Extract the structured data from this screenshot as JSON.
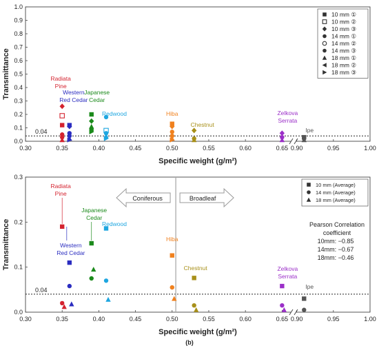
{
  "chart_data": [
    {
      "type": "scatter",
      "panel": "a",
      "xlabel": "Specific weight (g/m²)",
      "ylabel": "Transmittance",
      "xlim": [
        0.3,
        1.0
      ],
      "axis_break": [
        0.66,
        0.89
      ],
      "ylim": [
        0,
        1.0
      ],
      "xticks": [
        "0.30",
        "0.35",
        "0.40",
        "0.45",
        "0.50",
        "0.55",
        "0.60",
        "0.65",
        "0.90",
        "0.95",
        "1.00"
      ],
      "yticks": [
        "0.0",
        "0.1",
        "0.2",
        "0.3",
        "0.4",
        "0.5",
        "0.6",
        "0.7",
        "0.8",
        "0.9",
        "1.0"
      ],
      "reference_line": {
        "y": 0.04,
        "label": "0.04",
        "style": "dotted"
      },
      "legend_position": "top-right",
      "legend": [
        {
          "label": "10 mm ①",
          "marker": "square",
          "filled": true
        },
        {
          "label": "10 mm ②",
          "marker": "square",
          "filled": false
        },
        {
          "label": "10 mm ③",
          "marker": "diamond",
          "filled": true
        },
        {
          "label": "14 mm ①",
          "marker": "circle",
          "filled": true
        },
        {
          "label": "14 mm ②",
          "marker": "circle",
          "filled": false
        },
        {
          "label": "14 mm ③",
          "marker": "circle",
          "filled": true
        },
        {
          "label": "18 mm ①",
          "marker": "triangle-up",
          "filled": true
        },
        {
          "label": "18 mm ②",
          "marker": "triangle-left",
          "filled": true
        },
        {
          "label": "18 mm ③",
          "marker": "triangle-right",
          "filled": true
        }
      ],
      "species": [
        {
          "lines": [
            "Radiata",
            "Pine"
          ],
          "x": 0.35,
          "color": "#d4232f",
          "points": [
            {
              "series": 2,
              "y": 0.26
            },
            {
              "series": 1,
              "y": 0.19
            },
            {
              "series": 0,
              "y": 0.12
            },
            {
              "series": 3,
              "y": 0.05
            },
            {
              "series": 5,
              "y": 0.03
            },
            {
              "series": 6,
              "y": 0.01
            }
          ]
        },
        {
          "lines": [
            "Western",
            "Red Cedar"
          ],
          "x": 0.36,
          "color": "#2b2dc0",
          "points": [
            {
              "series": 0,
              "y": 0.12
            },
            {
              "series": 2,
              "y": 0.11
            },
            {
              "series": 3,
              "y": 0.06
            },
            {
              "series": 5,
              "y": 0.04
            },
            {
              "series": 6,
              "y": 0.02
            },
            {
              "series": 8,
              "y": 0.01
            }
          ]
        },
        {
          "lines": [
            "Japanese",
            "Cedar"
          ],
          "x": 0.39,
          "color": "#1b8a1b",
          "points": [
            {
              "series": 0,
              "y": 0.2
            },
            {
              "series": 2,
              "y": 0.15
            },
            {
              "series": 6,
              "y": 0.11
            },
            {
              "series": 3,
              "y": 0.09
            },
            {
              "series": 5,
              "y": 0.08
            },
            {
              "series": 8,
              "y": 0.07
            }
          ]
        },
        {
          "lines": [
            "Redwood"
          ],
          "x": 0.41,
          "color": "#1ea6e0",
          "points": [
            {
              "series": 3,
              "y": 0.18
            },
            {
              "series": 1,
              "y": 0.08
            },
            {
              "series": 5,
              "y": 0.06
            },
            {
              "series": 6,
              "y": 0.04
            },
            {
              "series": 8,
              "y": 0.02
            }
          ]
        },
        {
          "lines": [
            "Hiba"
          ],
          "x": 0.5,
          "color": "#f0811e",
          "points": [
            {
              "series": 0,
              "y": 0.13
            },
            {
              "series": 2,
              "y": 0.11
            },
            {
              "series": 3,
              "y": 0.07
            },
            {
              "series": 5,
              "y": 0.04
            },
            {
              "series": 6,
              "y": 0.02
            },
            {
              "series": 8,
              "y": 0.01
            }
          ]
        },
        {
          "lines": [
            "Chestnut"
          ],
          "x": 0.53,
          "color": "#a8901a",
          "points": [
            {
              "series": 2,
              "y": 0.08
            },
            {
              "series": 3,
              "y": 0.02
            },
            {
              "series": 6,
              "y": 0.01
            }
          ]
        },
        {
          "lines": [
            "Zelkova",
            "Serrata"
          ],
          "x": 0.65,
          "color": "#9b2fc8",
          "points": [
            {
              "series": 2,
              "y": 0.06
            },
            {
              "series": 3,
              "y": 0.03
            },
            {
              "series": 6,
              "y": 0.01
            }
          ]
        },
        {
          "lines": [
            "Ipe"
          ],
          "x": 0.91,
          "color": "#555555",
          "points": [
            {
              "series": 0,
              "y": 0.03
            },
            {
              "series": 3,
              "y": 0.02
            },
            {
              "series": 6,
              "y": 0.01
            }
          ]
        }
      ]
    },
    {
      "type": "scatter",
      "panel": "b",
      "caption": "(b)",
      "xlabel": "Specific weight (g/m²)",
      "ylabel": "Transmittance",
      "xlim": [
        0.3,
        1.0
      ],
      "axis_break": [
        0.66,
        0.89
      ],
      "ylim": [
        0,
        0.3
      ],
      "xticks": [
        "0.30",
        "0.35",
        "0.40",
        "0.45",
        "0.50",
        "0.55",
        "0.60",
        "0.65",
        "0.90",
        "0.95",
        "1.00"
      ],
      "yticks": [
        "0.0",
        "0.1",
        "0.2",
        "0.3"
      ],
      "reference_line": {
        "y": 0.04,
        "label": "0.04",
        "style": "dotted"
      },
      "divider": {
        "x": 0.505,
        "left_label": "Coniferous",
        "right_label": "Broadleaf"
      },
      "legend_position": "top-right",
      "legend": [
        {
          "label": "10 mm (Average)",
          "marker": "square",
          "filled": true
        },
        {
          "label": "14 mm (Average)",
          "marker": "circle",
          "filled": true
        },
        {
          "label": "18 mm (Average)",
          "marker": "triangle-up",
          "filled": true
        }
      ],
      "annotation": [
        "Pearson Correlation",
        "coefficient",
        "10mm: −0.85",
        "14mm: −0.67",
        "18mm: −0.46"
      ],
      "species": [
        {
          "lines": [
            "Radiata",
            "Pine"
          ],
          "x": 0.35,
          "color": "#d4232f",
          "points": [
            {
              "series": 0,
              "y": 0.19
            },
            {
              "series": 1,
              "y": 0.02
            },
            {
              "series": 2,
              "y": 0.012
            }
          ]
        },
        {
          "lines": [
            "Western",
            "Red Cedar"
          ],
          "x": 0.36,
          "color": "#2b2dc0",
          "points": [
            {
              "series": 0,
              "y": 0.11
            },
            {
              "series": 1,
              "y": 0.058
            },
            {
              "series": 2,
              "y": 0.018
            }
          ]
        },
        {
          "lines": [
            "Japanese",
            "Cedar"
          ],
          "x": 0.39,
          "color": "#1b8a1b",
          "points": [
            {
              "series": 0,
              "y": 0.153
            },
            {
              "series": 1,
              "y": 0.075
            },
            {
              "series": 2,
              "y": 0.095
            }
          ]
        },
        {
          "lines": [
            "Redwood"
          ],
          "x": 0.41,
          "color": "#1ea6e0",
          "points": [
            {
              "series": 0,
              "y": 0.186
            },
            {
              "series": 1,
              "y": 0.07
            },
            {
              "series": 2,
              "y": 0.028
            }
          ]
        },
        {
          "lines": [
            "Hiba"
          ],
          "x": 0.5,
          "color": "#f0811e",
          "points": [
            {
              "series": 0,
              "y": 0.126
            },
            {
              "series": 1,
              "y": 0.055
            },
            {
              "series": 2,
              "y": 0.03
            }
          ]
        },
        {
          "lines": [
            "Chestnut"
          ],
          "x": 0.53,
          "color": "#a8901a",
          "points": [
            {
              "series": 0,
              "y": 0.076
            },
            {
              "series": 1,
              "y": 0.015
            },
            {
              "series": 2,
              "y": 0.005
            }
          ]
        },
        {
          "lines": [
            "Zelkova",
            "Serrata"
          ],
          "x": 0.65,
          "color": "#9b2fc8",
          "points": [
            {
              "series": 0,
              "y": 0.058
            },
            {
              "series": 1,
              "y": 0.015
            },
            {
              "series": 2,
              "y": 0.005
            }
          ]
        },
        {
          "lines": [
            "Ipe"
          ],
          "x": 0.91,
          "color": "#555555",
          "points": [
            {
              "series": 0,
              "y": 0.03
            },
            {
              "series": 1,
              "y": 0.005
            }
          ]
        }
      ]
    }
  ]
}
